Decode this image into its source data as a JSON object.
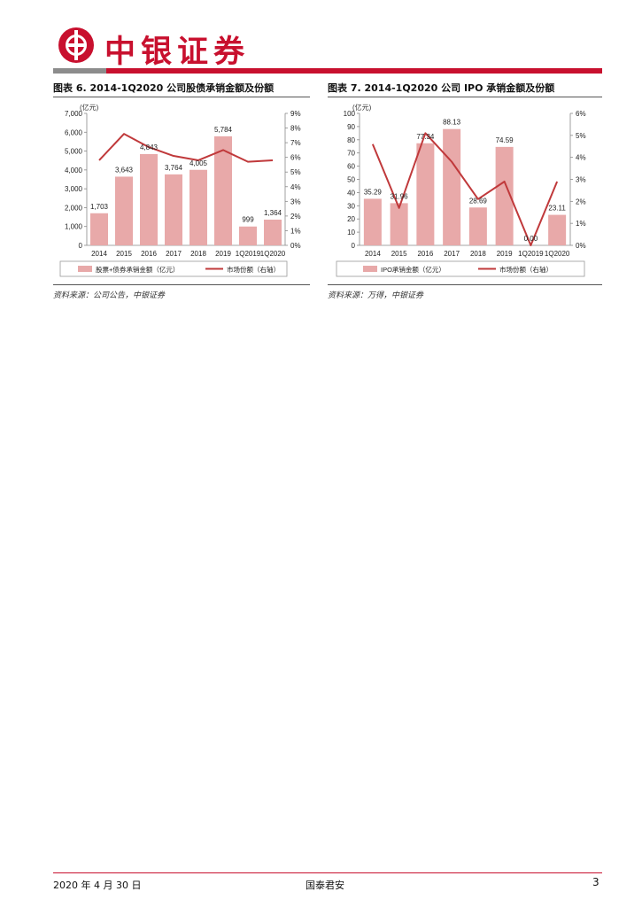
{
  "header": {
    "brand": "中银证券",
    "accent_color": "#c8102e"
  },
  "left_panel": {
    "title": "图表 6. 2014-1Q2020 公司股债承销金额及份额",
    "source": "资料来源：公司公告，中银证券"
  },
  "right_panel": {
    "title": "图表 7. 2014-1Q2020 公司 IPO 承销金额及份额",
    "source": "资料来源：万得，中银证券"
  },
  "chart_data": [
    {
      "type": "bar",
      "title": "",
      "unit_label": "(亿元)",
      "categories": [
        "2014",
        "2015",
        "2016",
        "2017",
        "2018",
        "2019",
        "1Q2019",
        "1Q2020"
      ],
      "series": [
        {
          "name": "股票+债券承销金额（亿元）",
          "type": "bar",
          "axis": "left",
          "values": [
            1703,
            3643,
            4843,
            3764,
            4005,
            5784,
            999,
            1364
          ],
          "labels": [
            "1,703",
            "3,643",
            "4,843",
            "3,764",
            "4,005",
            "5,784",
            "999",
            "1,364"
          ],
          "color": "#e8a9a9"
        },
        {
          "name": "市场份额（右轴）",
          "type": "line",
          "axis": "right",
          "values": [
            5.8,
            7.6,
            6.7,
            6.1,
            5.8,
            6.5,
            5.7,
            5.8
          ],
          "color": "#c0393b"
        }
      ],
      "y_left": {
        "min": 0,
        "max": 7000,
        "ticks": [
          "0",
          "1,000",
          "2,000",
          "3,000",
          "4,000",
          "5,000",
          "6,000",
          "7,000"
        ]
      },
      "y_right": {
        "min": 0,
        "max": 9,
        "ticks": [
          "0%",
          "1%",
          "2%",
          "3%",
          "4%",
          "5%",
          "6%",
          "7%",
          "8%",
          "9%"
        ]
      },
      "legend_placement": "bottom"
    },
    {
      "type": "bar",
      "title": "",
      "unit_label": "(亿元)",
      "categories": [
        "2014",
        "2015",
        "2016",
        "2017",
        "2018",
        "2019",
        "1Q2019",
        "1Q2020"
      ],
      "series": [
        {
          "name": "IPO承销金额（亿元）",
          "type": "bar",
          "axis": "left",
          "values": [
            35.29,
            31.96,
            77.34,
            88.13,
            28.69,
            74.59,
            0.0,
            23.11
          ],
          "labels": [
            "35.29",
            "31.96",
            "77.34",
            "88.13",
            "28.69",
            "74.59",
            "0.00",
            "23.11"
          ],
          "color": "#e8a9a9"
        },
        {
          "name": "市场份额（右轴）",
          "type": "line",
          "axis": "right",
          "values": [
            4.6,
            1.7,
            5.1,
            3.8,
            2.1,
            2.9,
            0.0,
            2.9
          ],
          "color": "#c0393b"
        }
      ],
      "y_left": {
        "min": 0,
        "max": 100,
        "ticks": [
          "0",
          "10",
          "20",
          "30",
          "40",
          "50",
          "60",
          "70",
          "80",
          "90",
          "100"
        ]
      },
      "y_right": {
        "min": 0,
        "max": 6,
        "ticks": [
          "0%",
          "1%",
          "2%",
          "3%",
          "4%",
          "5%",
          "6%"
        ]
      },
      "legend_placement": "bottom"
    }
  ],
  "footer": {
    "date": "2020 年 4 月 30 日",
    "publisher": "国泰君安",
    "page": "3"
  }
}
